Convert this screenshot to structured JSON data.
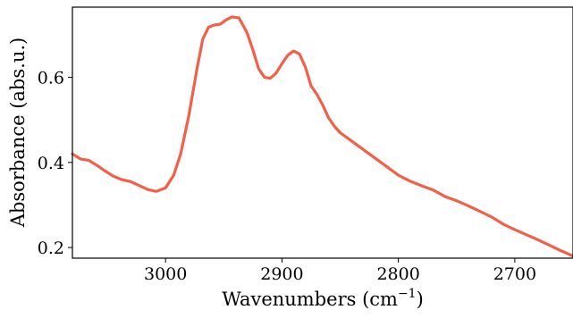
{
  "chart_data": {
    "type": "line",
    "title": "",
    "xlabel": "Wavenumbers (cm",
    "xlabel_sup": "−1",
    "xlabel_suffix": ")",
    "ylabel": "Absorbance (abs.u.)",
    "xlim": [
      3080,
      2650
    ],
    "ylim": [
      0.175,
      0.765
    ],
    "x_reversed": true,
    "grid": false,
    "legend": "none",
    "x_ticks": [
      3000,
      2900,
      2800,
      2700
    ],
    "x_tick_labels": [
      "3000",
      "2900",
      "2800",
      "2700"
    ],
    "y_ticks": [
      0.2,
      0.4,
      0.6
    ],
    "y_tick_labels": [
      "0.2",
      "0.4",
      "0.6"
    ],
    "series": [
      {
        "color": "#f2604a",
        "x": [
          3080,
          3073,
          3066,
          3060,
          3052,
          3045,
          3038,
          3030,
          3022,
          3015,
          3008,
          3000,
          2993,
          2987,
          2980,
          2973,
          2968,
          2963,
          2958,
          2953,
          2948,
          2943,
          2937,
          2930,
          2925,
          2920,
          2915,
          2910,
          2905,
          2900,
          2895,
          2890,
          2885,
          2880,
          2875,
          2870,
          2865,
          2860,
          2855,
          2850,
          2840,
          2830,
          2820,
          2810,
          2800,
          2790,
          2780,
          2770,
          2760,
          2750,
          2740,
          2730,
          2720,
          2710,
          2700,
          2690,
          2680,
          2670,
          2660,
          2650
        ],
        "y": [
          0.42,
          0.408,
          0.405,
          0.395,
          0.38,
          0.368,
          0.36,
          0.355,
          0.345,
          0.336,
          0.332,
          0.34,
          0.37,
          0.42,
          0.51,
          0.62,
          0.69,
          0.718,
          0.723,
          0.725,
          0.735,
          0.742,
          0.74,
          0.705,
          0.665,
          0.62,
          0.6,
          0.598,
          0.61,
          0.632,
          0.652,
          0.662,
          0.655,
          0.625,
          0.58,
          0.56,
          0.535,
          0.505,
          0.485,
          0.47,
          0.45,
          0.43,
          0.41,
          0.39,
          0.37,
          0.356,
          0.345,
          0.335,
          0.32,
          0.31,
          0.298,
          0.285,
          0.272,
          0.255,
          0.242,
          0.23,
          0.218,
          0.205,
          0.192,
          0.18
        ]
      }
    ]
  }
}
